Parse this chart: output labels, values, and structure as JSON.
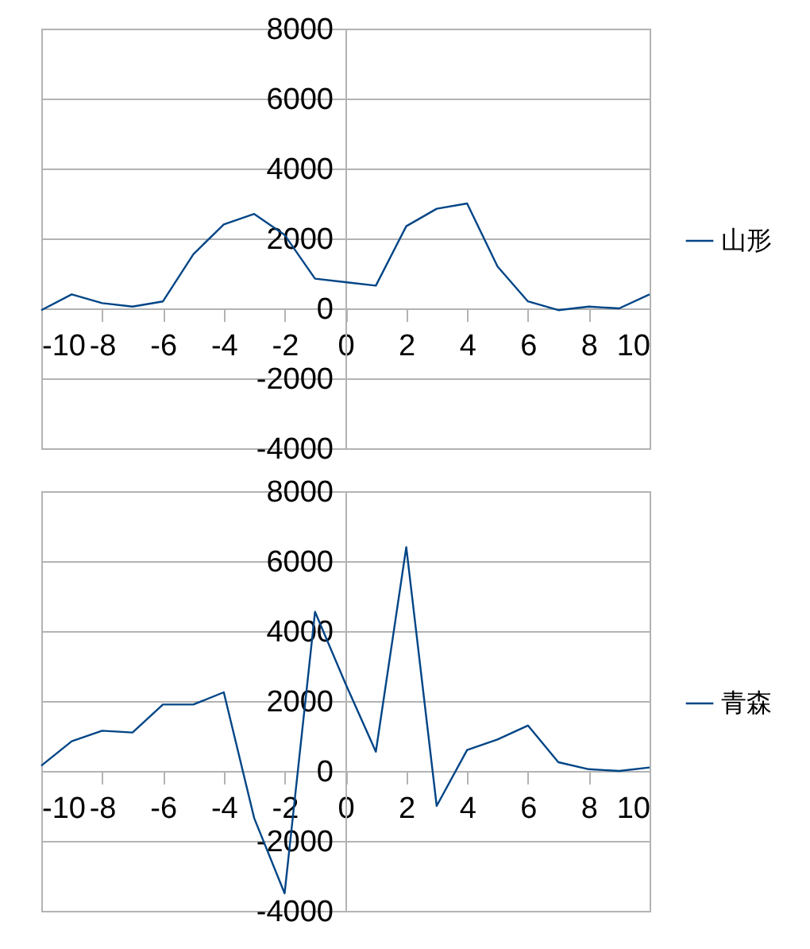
{
  "chart_data": [
    {
      "type": "line",
      "x": [
        -10,
        -9,
        -8,
        -7,
        -6,
        -5,
        -4,
        -3,
        -2,
        -1,
        0,
        1,
        2,
        3,
        4,
        5,
        6,
        7,
        8,
        9,
        10
      ],
      "series": [
        {
          "name": "山形",
          "color": "#004586",
          "values": [
            -50,
            400,
            150,
            50,
            200,
            1550,
            2400,
            2700,
            2100,
            850,
            750,
            650,
            2350,
            2850,
            3000,
            1200,
            200,
            -50,
            50,
            0,
            400
          ]
        }
      ],
      "xlim": [
        -10,
        10
      ],
      "xticks": [
        -10,
        -8,
        -6,
        -4,
        -2,
        0,
        2,
        4,
        6,
        8,
        10
      ],
      "ylim": [
        -4000,
        8000
      ],
      "yticks": [
        -4000,
        -2000,
        0,
        2000,
        4000,
        6000,
        8000
      ],
      "grid": "y",
      "legend": "right",
      "marker": "none"
    },
    {
      "type": "line",
      "x": [
        -10,
        -9,
        -8,
        -7,
        -6,
        -5,
        -4,
        -3,
        -2,
        -1,
        0,
        1,
        2,
        3,
        4,
        5,
        6,
        7,
        8,
        9,
        10
      ],
      "series": [
        {
          "name": "青森",
          "color": "#004586",
          "values": [
            150,
            850,
            1150,
            1100,
            1900,
            1900,
            2250,
            -1350,
            -3500,
            4550,
            2500,
            550,
            6400,
            -1000,
            600,
            900,
            1300,
            250,
            50,
            0,
            100
          ]
        }
      ],
      "xlim": [
        -10,
        10
      ],
      "xticks": [
        -10,
        -8,
        -6,
        -4,
        -2,
        0,
        2,
        4,
        6,
        8,
        10
      ],
      "ylim": [
        -4000,
        8000
      ],
      "yticks": [
        -4000,
        -2000,
        0,
        2000,
        4000,
        6000,
        8000
      ],
      "grid": "y",
      "legend": "right",
      "marker": "none"
    }
  ]
}
